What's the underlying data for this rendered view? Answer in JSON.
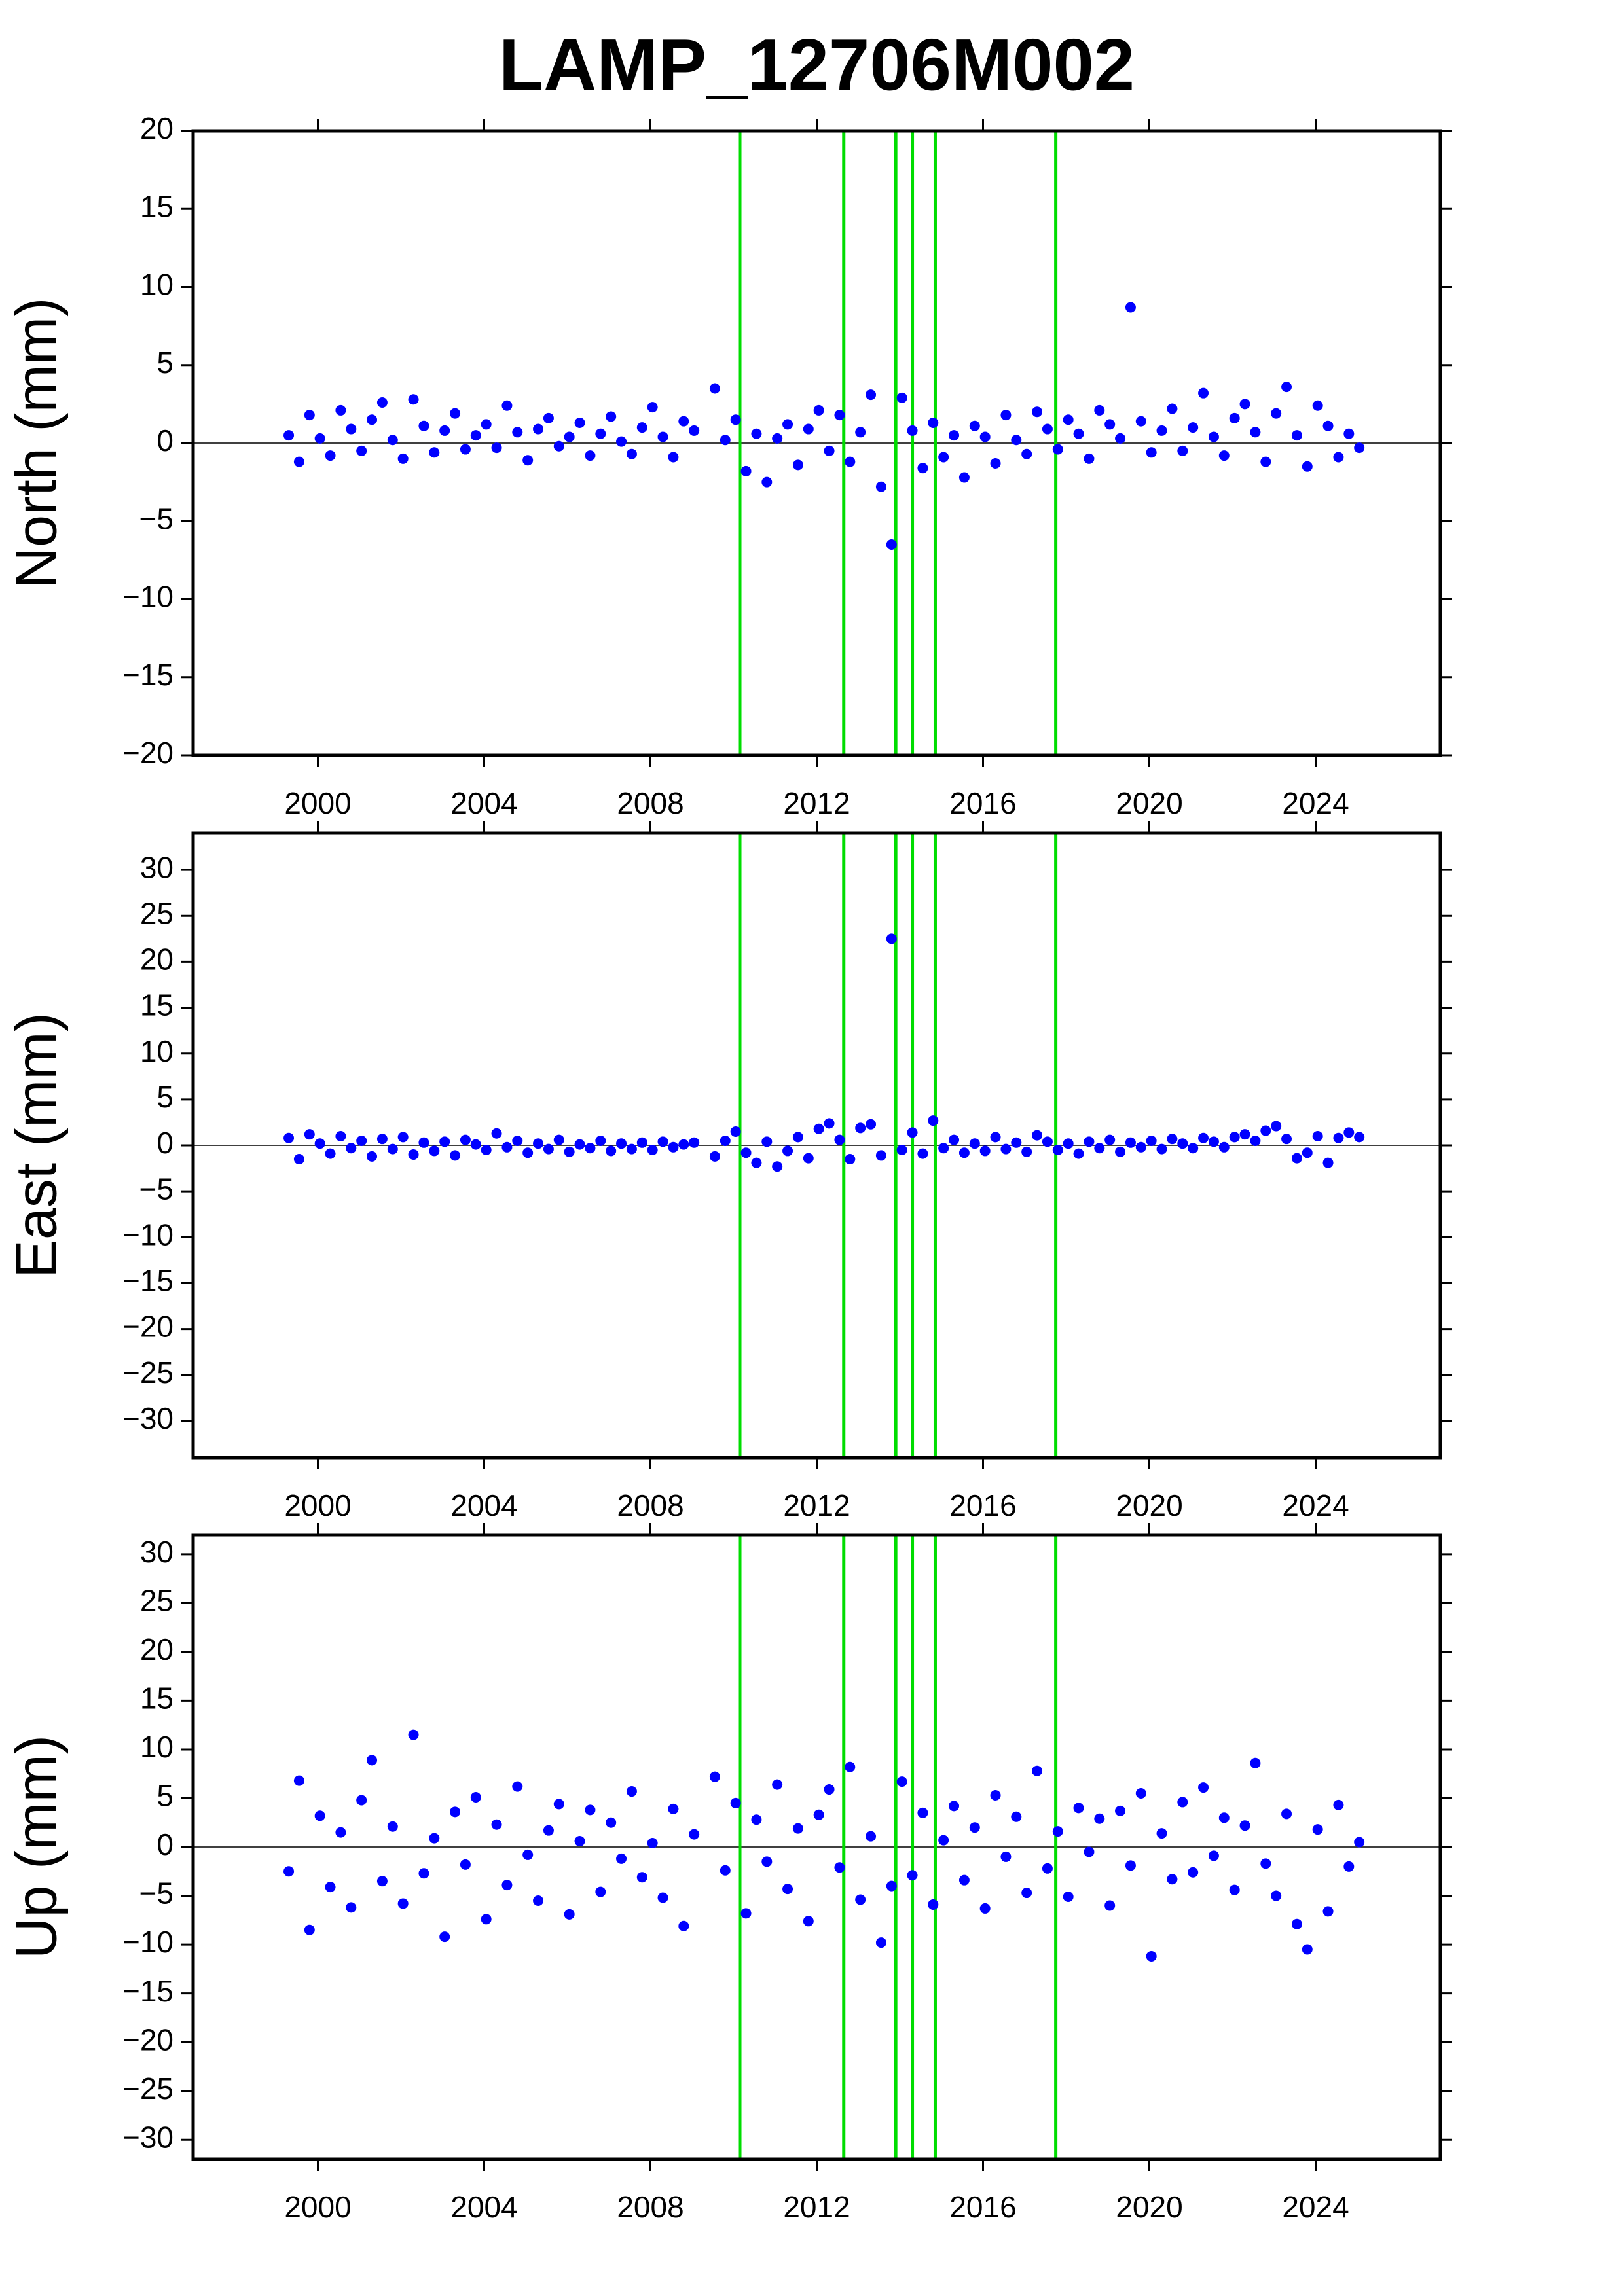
{
  "chart_data": [
    {
      "type": "scatter",
      "title": "LAMP_12706M002",
      "y_label": "North (mm)",
      "color": "#0000ff",
      "vline_color": "#00dd00",
      "zero_line": true,
      "xlim": [
        1997,
        2027
      ],
      "xticks": [
        2000,
        2004,
        2008,
        2012,
        2016,
        2020,
        2024
      ],
      "ylim": [
        -20,
        20
      ],
      "yticks": [
        {
          "value": -20,
          "label": "−20"
        },
        {
          "value": -15,
          "label": "−15"
        },
        {
          "value": -10,
          "label": "−10"
        },
        {
          "value": -5,
          "label": "−5"
        },
        0,
        5,
        10,
        15,
        20
      ],
      "vlines": [
        2010.15,
        2012.65,
        2013.9,
        2014.3,
        2014.85,
        2017.75
      ],
      "x": [
        1999.3,
        1999.55,
        1999.8,
        2000.05,
        2000.3,
        2000.55,
        2000.8,
        2001.05,
        2001.3,
        2001.55,
        2001.8,
        2002.05,
        2002.3,
        2002.55,
        2002.8,
        2003.05,
        2003.3,
        2003.55,
        2003.8,
        2004.05,
        2004.3,
        2004.55,
        2004.8,
        2005.05,
        2005.3,
        2005.55,
        2005.8,
        2006.05,
        2006.3,
        2006.55,
        2006.8,
        2007.05,
        2007.3,
        2007.55,
        2007.8,
        2008.05,
        2008.3,
        2008.55,
        2008.8,
        2009.05,
        2009.55,
        2009.8,
        2010.05,
        2010.3,
        2010.55,
        2010.8,
        2011.05,
        2011.3,
        2011.55,
        2011.8,
        2012.05,
        2012.3,
        2012.55,
        2012.8,
        2013.05,
        2013.3,
        2013.55,
        2013.8,
        2014.05,
        2014.3,
        2014.55,
        2014.8,
        2015.05,
        2015.3,
        2015.55,
        2015.8,
        2016.05,
        2016.3,
        2016.55,
        2016.8,
        2017.05,
        2017.3,
        2017.55,
        2017.8,
        2018.05,
        2018.3,
        2018.55,
        2018.8,
        2019.05,
        2019.3,
        2019.55,
        2019.8,
        2020.05,
        2020.3,
        2020.55,
        2020.8,
        2021.05,
        2021.3,
        2021.55,
        2021.8,
        2022.05,
        2022.3,
        2022.55,
        2022.8,
        2023.05,
        2023.3,
        2023.55,
        2023.8,
        2024.05,
        2024.3,
        2024.55,
        2024.8,
        2025.05
      ],
      "values": [
        0.5,
        -1.2,
        1.8,
        0.3,
        -0.8,
        2.1,
        0.9,
        -0.5,
        1.5,
        2.6,
        0.2,
        -1.0,
        2.8,
        1.1,
        -0.6,
        0.8,
        1.9,
        -0.4,
        0.5,
        1.2,
        -0.3,
        2.4,
        0.7,
        -1.1,
        0.9,
        1.6,
        -0.2,
        0.4,
        1.3,
        -0.8,
        0.6,
        1.7,
        0.1,
        -0.7,
        1.0,
        2.3,
        0.4,
        -0.9,
        1.4,
        0.8,
        3.5,
        0.2,
        1.5,
        -1.8,
        0.6,
        -2.5,
        0.3,
        1.2,
        -1.4,
        0.9,
        2.1,
        -0.5,
        1.8,
        -1.2,
        0.7,
        3.1,
        -2.8,
        -6.5,
        2.9,
        0.8,
        -1.6,
        1.3,
        -0.9,
        0.5,
        -2.2,
        1.1,
        0.4,
        -1.3,
        1.8,
        0.2,
        -0.7,
        2.0,
        0.9,
        -0.4,
        1.5,
        0.6,
        -1.0,
        2.1,
        1.2,
        0.3,
        8.7,
        1.4,
        -0.6,
        0.8,
        2.2,
        -0.5,
        1.0,
        3.2,
        0.4,
        -0.8,
        1.6,
        2.5,
        0.7,
        -1.2,
        1.9,
        3.6,
        0.5,
        -1.5,
        2.4,
        1.1,
        -0.9,
        0.6,
        -0.3
      ]
    },
    {
      "type": "scatter",
      "y_label": "East (mm)",
      "color": "#0000ff",
      "vline_color": "#00dd00",
      "zero_line": true,
      "xlim": [
        1997,
        2027
      ],
      "xticks": [
        2000,
        2004,
        2008,
        2012,
        2016,
        2020,
        2024
      ],
      "ylim": [
        -34,
        34
      ],
      "yticks": [
        {
          "value": -30,
          "label": "−30"
        },
        {
          "value": -25,
          "label": "−25"
        },
        {
          "value": -20,
          "label": "−20"
        },
        {
          "value": -15,
          "label": "−15"
        },
        {
          "value": -10,
          "label": "−10"
        },
        {
          "value": -5,
          "label": "−5"
        },
        0,
        5,
        10,
        15,
        20,
        25,
        30
      ],
      "vlines": [
        2010.15,
        2012.65,
        2013.9,
        2014.3,
        2014.85,
        2017.75
      ],
      "x": [
        1999.3,
        1999.55,
        1999.8,
        2000.05,
        2000.3,
        2000.55,
        2000.8,
        2001.05,
        2001.3,
        2001.55,
        2001.8,
        2002.05,
        2002.3,
        2002.55,
        2002.8,
        2003.05,
        2003.3,
        2003.55,
        2003.8,
        2004.05,
        2004.3,
        2004.55,
        2004.8,
        2005.05,
        2005.3,
        2005.55,
        2005.8,
        2006.05,
        2006.3,
        2006.55,
        2006.8,
        2007.05,
        2007.3,
        2007.55,
        2007.8,
        2008.05,
        2008.3,
        2008.55,
        2008.8,
        2009.05,
        2009.55,
        2009.8,
        2010.05,
        2010.3,
        2010.55,
        2010.8,
        2011.05,
        2011.3,
        2011.55,
        2011.8,
        2012.05,
        2012.3,
        2012.55,
        2012.8,
        2013.05,
        2013.3,
        2013.55,
        2013.8,
        2014.05,
        2014.3,
        2014.55,
        2014.8,
        2015.05,
        2015.3,
        2015.55,
        2015.8,
        2016.05,
        2016.3,
        2016.55,
        2016.8,
        2017.05,
        2017.3,
        2017.55,
        2017.8,
        2018.05,
        2018.3,
        2018.55,
        2018.8,
        2019.05,
        2019.3,
        2019.55,
        2019.8,
        2020.05,
        2020.3,
        2020.55,
        2020.8,
        2021.05,
        2021.3,
        2021.55,
        2021.8,
        2022.05,
        2022.3,
        2022.55,
        2022.8,
        2023.05,
        2023.3,
        2023.55,
        2023.8,
        2024.05,
        2024.3,
        2024.55,
        2024.8,
        2025.05
      ],
      "values": [
        0.8,
        -1.5,
        1.2,
        0.2,
        -0.9,
        1.0,
        -0.3,
        0.5,
        -1.2,
        0.7,
        -0.4,
        0.9,
        -1.0,
        0.3,
        -0.6,
        0.4,
        -1.1,
        0.6,
        0.1,
        -0.5,
        1.3,
        -0.2,
        0.5,
        -0.8,
        0.2,
        -0.4,
        0.6,
        -0.7,
        0.1,
        -0.3,
        0.5,
        -0.6,
        0.2,
        -0.4,
        0.3,
        -0.5,
        0.4,
        -0.2,
        0.1,
        0.3,
        -1.2,
        0.5,
        1.5,
        -0.8,
        -1.9,
        0.4,
        -2.3,
        -0.6,
        0.9,
        -1.4,
        1.8,
        2.4,
        0.6,
        -1.5,
        1.9,
        2.3,
        -1.1,
        22.5,
        -0.5,
        1.4,
        -0.9,
        2.7,
        -0.3,
        0.6,
        -0.8,
        0.2,
        -0.6,
        0.9,
        -0.4,
        0.3,
        -0.7,
        1.1,
        0.4,
        -0.5,
        0.2,
        -0.9,
        0.4,
        -0.3,
        0.6,
        -0.7,
        0.3,
        -0.2,
        0.5,
        -0.4,
        0.7,
        0.2,
        -0.3,
        0.8,
        0.4,
        -0.2,
        0.9,
        1.2,
        0.5,
        1.6,
        2.1,
        0.7,
        -1.4,
        -0.8,
        1.0,
        -1.9,
        0.8,
        1.4,
        0.9
      ]
    },
    {
      "type": "scatter",
      "y_label": "Up (mm)",
      "color": "#0000ff",
      "vline_color": "#00dd00",
      "zero_line": true,
      "xlim": [
        1997,
        2027
      ],
      "xticks": [
        2000,
        2004,
        2008,
        2012,
        2016,
        2020,
        2024
      ],
      "ylim": [
        -32,
        32
      ],
      "yticks": [
        {
          "value": -30,
          "label": "−30"
        },
        {
          "value": -25,
          "label": "−25"
        },
        {
          "value": -20,
          "label": "−20"
        },
        {
          "value": -15,
          "label": "−15"
        },
        {
          "value": -10,
          "label": "−10"
        },
        {
          "value": -5,
          "label": "−5"
        },
        0,
        5,
        10,
        15,
        20,
        25,
        30
      ],
      "vlines": [
        2010.15,
        2012.65,
        2013.9,
        2014.3,
        2014.85,
        2017.75
      ],
      "x": [
        1999.3,
        1999.55,
        1999.8,
        2000.05,
        2000.3,
        2000.55,
        2000.8,
        2001.05,
        2001.3,
        2001.55,
        2001.8,
        2002.05,
        2002.3,
        2002.55,
        2002.8,
        2003.05,
        2003.3,
        2003.55,
        2003.8,
        2004.05,
        2004.3,
        2004.55,
        2004.8,
        2005.05,
        2005.3,
        2005.55,
        2005.8,
        2006.05,
        2006.3,
        2006.55,
        2006.8,
        2007.05,
        2007.3,
        2007.55,
        2007.8,
        2008.05,
        2008.3,
        2008.55,
        2008.8,
        2009.05,
        2009.55,
        2009.8,
        2010.05,
        2010.3,
        2010.55,
        2010.8,
        2011.05,
        2011.3,
        2011.55,
        2011.8,
        2012.05,
        2012.3,
        2012.55,
        2012.8,
        2013.05,
        2013.3,
        2013.55,
        2013.8,
        2014.05,
        2014.3,
        2014.55,
        2014.8,
        2015.05,
        2015.3,
        2015.55,
        2015.8,
        2016.05,
        2016.3,
        2016.55,
        2016.8,
        2017.05,
        2017.3,
        2017.55,
        2017.8,
        2018.05,
        2018.3,
        2018.55,
        2018.8,
        2019.05,
        2019.3,
        2019.55,
        2019.8,
        2020.05,
        2020.3,
        2020.55,
        2020.8,
        2021.05,
        2021.3,
        2021.55,
        2021.8,
        2022.05,
        2022.3,
        2022.55,
        2022.8,
        2023.05,
        2023.3,
        2023.55,
        2023.8,
        2024.05,
        2024.3,
        2024.55,
        2024.8,
        2025.05
      ],
      "values": [
        -2.5,
        6.8,
        -8.5,
        3.2,
        -4.1,
        1.5,
        -6.2,
        4.8,
        8.9,
        -3.5,
        2.1,
        -5.8,
        11.5,
        -2.7,
        0.9,
        -9.2,
        3.6,
        -1.8,
        5.1,
        -7.4,
        2.3,
        -3.9,
        6.2,
        -0.8,
        -5.5,
        1.7,
        4.4,
        -6.9,
        0.6,
        3.8,
        -4.6,
        2.5,
        -1.2,
        5.7,
        -3.1,
        0.4,
        -5.2,
        3.9,
        -8.1,
        1.3,
        7.2,
        -2.4,
        4.5,
        -6.8,
        2.8,
        -1.5,
        6.4,
        -4.3,
        1.9,
        -7.6,
        3.3,
        5.9,
        -2.1,
        8.2,
        -5.4,
        1.1,
        -9.8,
        -4.0,
        6.7,
        -2.9,
        3.5,
        -5.9,
        0.7,
        4.2,
        -3.4,
        2.0,
        -6.3,
        5.3,
        -1.0,
        3.1,
        -4.7,
        7.8,
        -2.2,
        1.6,
        -5.1,
        4.0,
        -0.5,
        2.9,
        -6.0,
        3.7,
        -1.9,
        5.5,
        -11.2,
        1.4,
        -3.3,
        4.6,
        -2.6,
        6.1,
        -0.9,
        3.0,
        -4.4,
        2.2,
        8.6,
        -1.7,
        -5.0,
        3.4,
        -7.9,
        -10.5,
        1.8,
        -6.6,
        4.3,
        -2.0,
        0.5
      ]
    }
  ]
}
